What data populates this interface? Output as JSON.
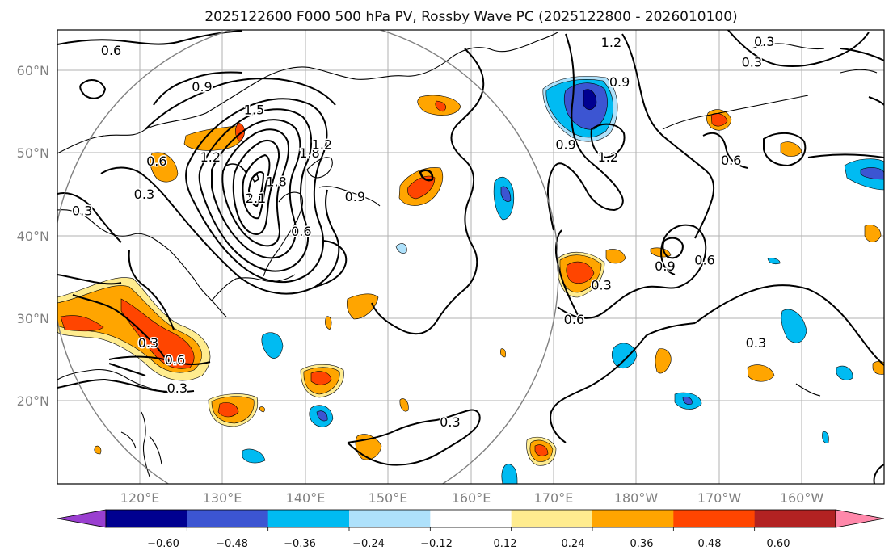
{
  "title": "2025122600 F000 500 hPa PV, Rossby Wave PC (2025122800 - 2026010100)",
  "lat_labels": [
    "60°N",
    "50°N",
    "40°N",
    "30°N",
    "20°N"
  ],
  "lon_labels": [
    "120°E",
    "130°E",
    "140°E",
    "150°E",
    "160°E",
    "170°E",
    "180°W",
    "170°W",
    "160°W"
  ],
  "colorbar": {
    "colors": [
      "#9a3fd0",
      "#000090",
      "#3c55d2",
      "#00bbf2",
      "#aee1fb",
      "#ffffff",
      "#ffec8f",
      "#ffa500",
      "#ff4500",
      "#b22222",
      "#ff88aa"
    ],
    "tick_labels": [
      "−0.60",
      "−0.48",
      "−0.36",
      "−0.24",
      "−0.12",
      "0.12",
      "0.24",
      "0.36",
      "0.48",
      "0.60"
    ]
  },
  "contour_labels": [
    {
      "text": "0.6",
      "lon": 116.5,
      "lat": 62.4
    },
    {
      "text": "0.9",
      "lon": 127.5,
      "lat": 58.0
    },
    {
      "text": "1.5",
      "lon": 133.8,
      "lat": 55.2
    },
    {
      "text": "1.2",
      "lon": 128.5,
      "lat": 49.5
    },
    {
      "text": "1.8",
      "lon": 140.5,
      "lat": 50.0
    },
    {
      "text": "1.2",
      "lon": 142.0,
      "lat": 51.0
    },
    {
      "text": "2.1",
      "lon": 134.0,
      "lat": 44.5
    },
    {
      "text": "1.8",
      "lon": 136.5,
      "lat": 46.5
    },
    {
      "text": "0.6",
      "lon": 122.0,
      "lat": 49.0
    },
    {
      "text": "0.3",
      "lon": 120.5,
      "lat": 45.0
    },
    {
      "text": "0.3",
      "lon": 113.0,
      "lat": 43.0
    },
    {
      "text": "0.6",
      "lon": 139.5,
      "lat": 40.5
    },
    {
      "text": "0.9",
      "lon": 146.0,
      "lat": 44.7
    },
    {
      "text": "0.3",
      "lon": 121.0,
      "lat": 27.0
    },
    {
      "text": "0.6",
      "lon": 124.2,
      "lat": 24.9
    },
    {
      "text": "0.3",
      "lon": 124.5,
      "lat": 21.5
    },
    {
      "text": "0.3",
      "lon": 157.5,
      "lat": 17.4
    },
    {
      "text": "0.6",
      "lon": 172.5,
      "lat": 29.8
    },
    {
      "text": "0.3",
      "lon": 175.8,
      "lat": 34.0
    },
    {
      "text": "0.9",
      "lon": 183.5,
      "lat": 36.3
    },
    {
      "text": "0.6",
      "lon": 188.3,
      "lat": 37.0
    },
    {
      "text": "1.2",
      "lon": 176.6,
      "lat": 49.5
    },
    {
      "text": "0.9",
      "lon": 171.5,
      "lat": 51.0
    },
    {
      "text": "0.9",
      "lon": 178.0,
      "lat": 58.6
    },
    {
      "text": "1.2",
      "lon": 177.0,
      "lat": 63.4
    },
    {
      "text": "0.3",
      "lon": 195.5,
      "lat": 63.5
    },
    {
      "text": "0.3",
      "lon": 194.0,
      "lat": 61.0
    },
    {
      "text": "0.6",
      "lon": 191.5,
      "lat": 49.1
    },
    {
      "text": "0.3",
      "lon": 194.5,
      "lat": 27.0
    }
  ]
}
